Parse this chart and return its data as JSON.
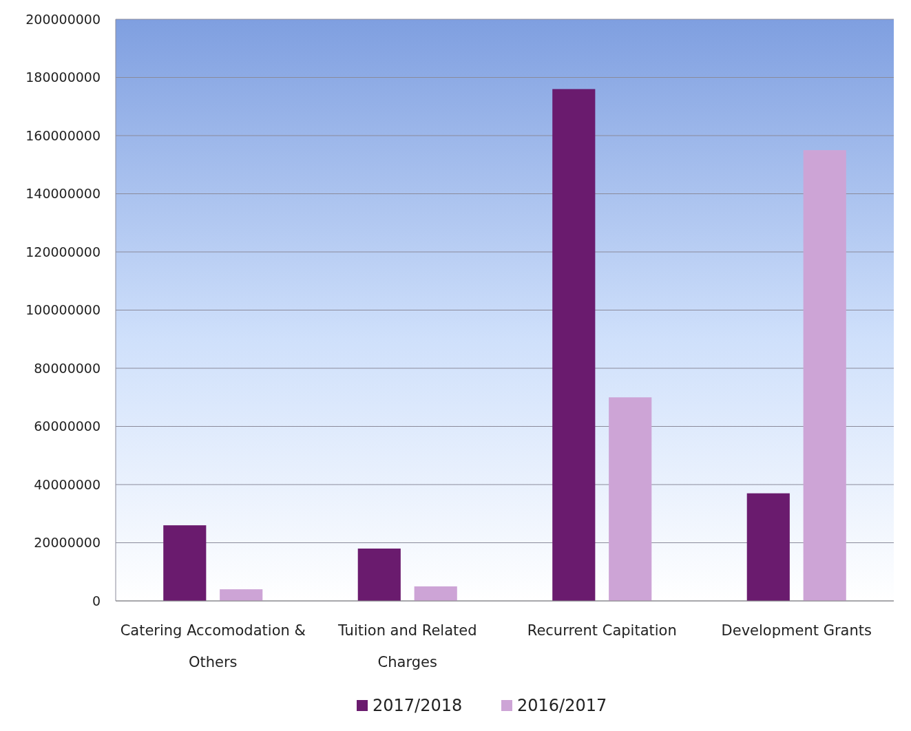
{
  "chart_data": {
    "type": "bar",
    "categories": [
      "Catering Accomodation & Others",
      "Tuition and Related Charges",
      "Recurrent Capitation",
      "Development Grants"
    ],
    "series": [
      {
        "name": "2017/2018",
        "color": "#6a1b6e",
        "values": [
          26000000,
          18000000,
          176000000,
          37000000
        ]
      },
      {
        "name": "2016/2017",
        "color": "#cda4d6",
        "values": [
          4000000,
          5000000,
          70000000,
          155000000
        ]
      }
    ],
    "ylim": [
      0,
      200000000
    ],
    "yticks": [
      0,
      20000000,
      40000000,
      60000000,
      80000000,
      100000000,
      120000000,
      140000000,
      160000000,
      180000000,
      200000000
    ],
    "grid": "y",
    "legend": "bottom"
  }
}
